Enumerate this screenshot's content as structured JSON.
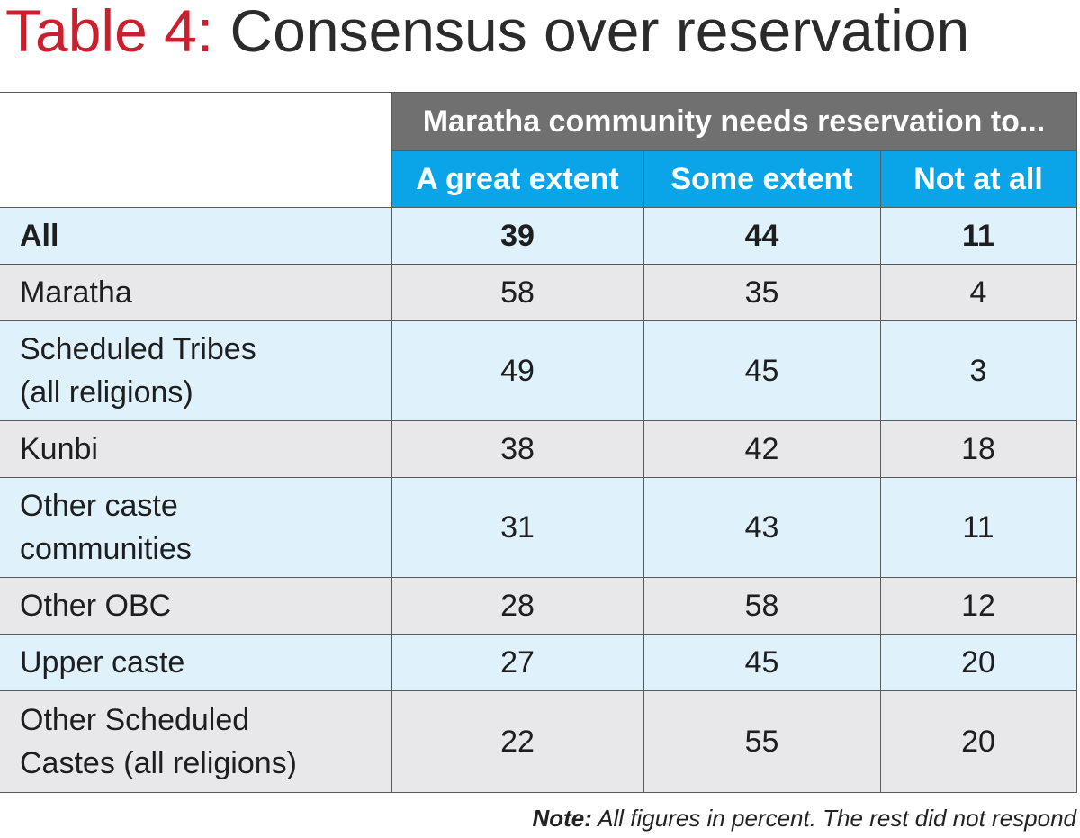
{
  "title": {
    "prefix": "Table 4:",
    "main": "Consensus over reservation"
  },
  "chart_data": {
    "type": "table",
    "title": "Table 4: Consensus over reservation",
    "group_header": "Maratha community needs reservation to...",
    "columns": [
      "A great extent",
      "Some extent",
      "Not at all"
    ],
    "rows": [
      {
        "label": "All",
        "values": [
          39,
          44,
          11
        ]
      },
      {
        "label": "Maratha",
        "values": [
          58,
          35,
          4
        ]
      },
      {
        "label_lines": [
          "Scheduled Tribes",
          "(all religions)"
        ],
        "values": [
          49,
          45,
          3
        ]
      },
      {
        "label": "Kunbi",
        "values": [
          38,
          42,
          18
        ]
      },
      {
        "label_lines": [
          "Other caste",
          "communities"
        ],
        "values": [
          31,
          43,
          11
        ]
      },
      {
        "label": "Other OBC",
        "values": [
          28,
          58,
          12
        ]
      },
      {
        "label": "Upper caste",
        "values": [
          27,
          45,
          20
        ]
      },
      {
        "label_lines": [
          "Other Scheduled",
          "Castes (all religions)"
        ],
        "values": [
          22,
          55,
          20
        ]
      }
    ],
    "row_colors": [
      "#dff2fc",
      "#e8e8ea"
    ],
    "header_colors": {
      "group": "#707070",
      "columns": "#0aa5e8"
    }
  },
  "note": {
    "label": "Note:",
    "text": " All figures in percent. The rest did not respond"
  },
  "colors": {
    "title_prefix": "#c8202f",
    "title_main": "#2b2b2b"
  }
}
